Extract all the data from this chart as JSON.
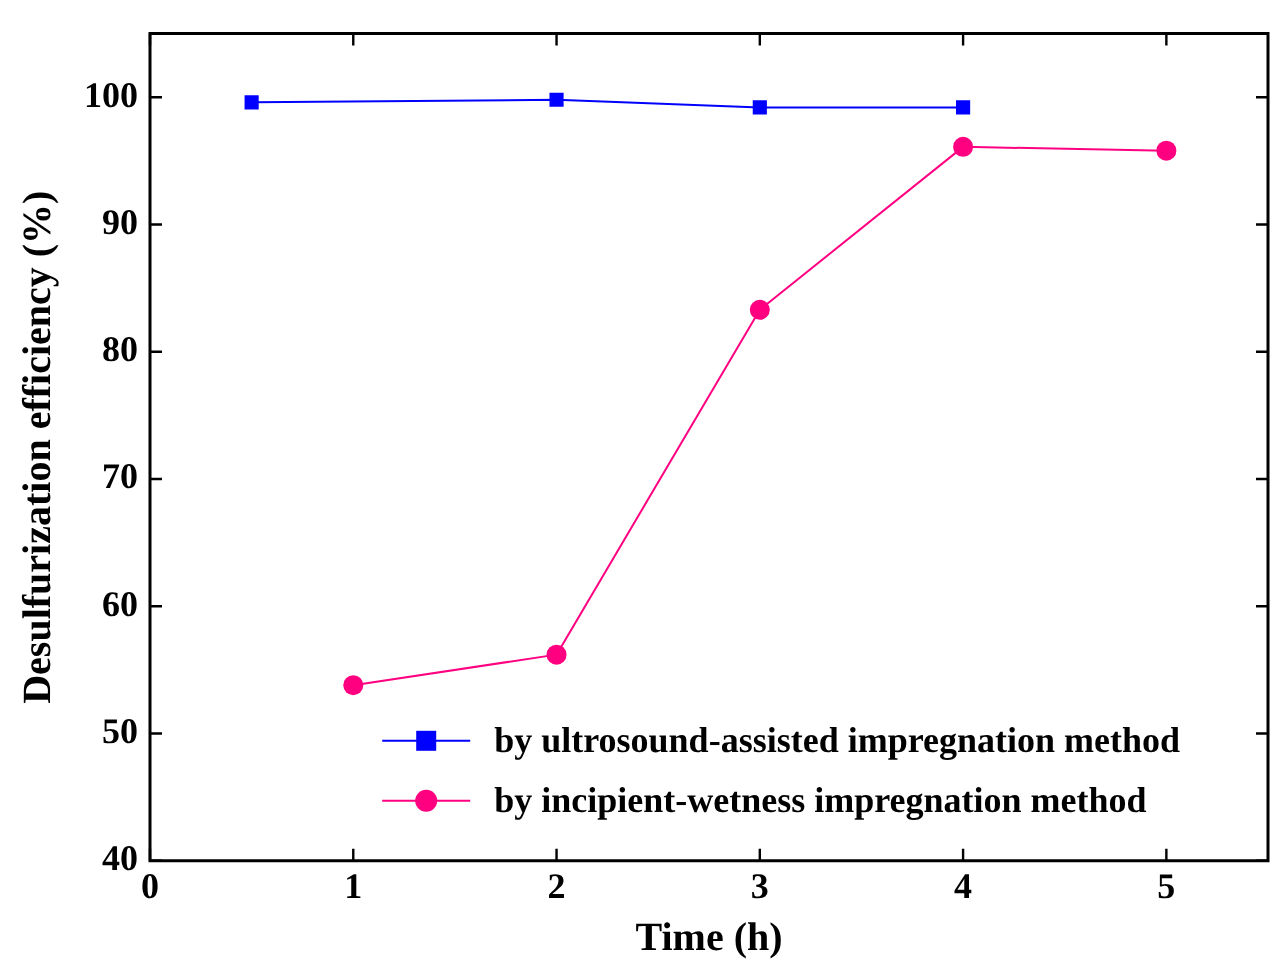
{
  "chart_data": {
    "type": "line",
    "xlabel": "Time (h)",
    "ylabel": "Desulfurization efficiency (%)",
    "xlim": [
      0,
      5.5
    ],
    "xticks": [
      0,
      1,
      2,
      3,
      4,
      5
    ],
    "ylim": [
      40,
      105
    ],
    "yticks": [
      40,
      50,
      60,
      70,
      80,
      90,
      100
    ],
    "legend": "bottom right",
    "grid": false,
    "line_style": "solid",
    "series": [
      {
        "name": "by ultrosound-assisted impregnation method",
        "color": "#0000ff",
        "marker": "square",
        "x": [
          0.5,
          2,
          3,
          4
        ],
        "values": [
          99.6,
          99.8,
          99.2,
          99.2
        ]
      },
      {
        "name": "by incipient-wetness impregnation method",
        "color": "#ff0080",
        "marker": "circle",
        "x": [
          1,
          2,
          3,
          4,
          5
        ],
        "values": [
          53.8,
          56.2,
          83.3,
          96.1,
          95.8
        ]
      }
    ]
  }
}
